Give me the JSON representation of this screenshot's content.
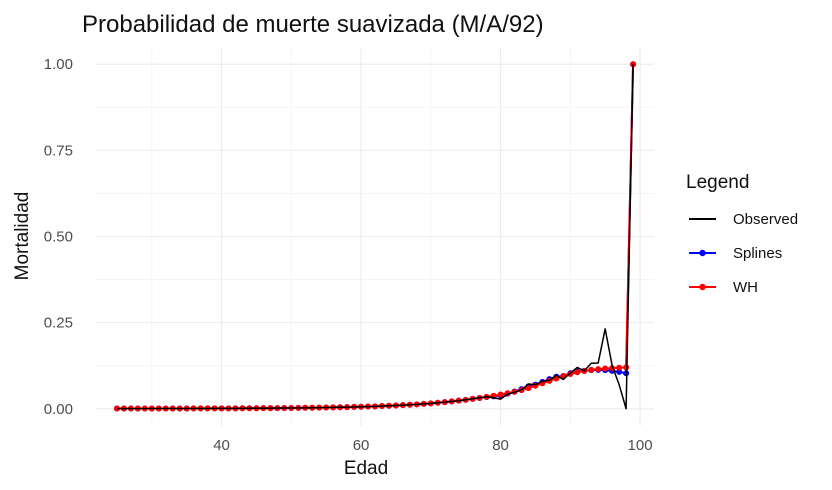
{
  "chart_data": {
    "type": "line",
    "title": "Probabilidad de muerte suavizada (M/A/92)",
    "xlabel": "Edad",
    "ylabel": "Mortalidad",
    "xlim": [
      22,
      102
    ],
    "ylim": [
      -0.05,
      1.05
    ],
    "x_ticks": [
      40,
      60,
      80,
      100
    ],
    "y_ticks": [
      0.0,
      0.25,
      0.5,
      0.75,
      1.0
    ],
    "y_tick_labels": [
      "0.00",
      "0.25",
      "0.50",
      "0.75",
      "1.00"
    ],
    "x_minor": [
      30,
      50,
      70,
      90
    ],
    "y_minor": [
      0.125,
      0.375,
      0.625,
      0.875
    ],
    "grid": true,
    "legend": {
      "title": "Legend",
      "position": "right",
      "entries": [
        {
          "label": "Observed",
          "color": "#000000",
          "marker": false
        },
        {
          "label": "Splines",
          "color": "#0000ff",
          "marker": true
        },
        {
          "label": "WH",
          "color": "#ff0000",
          "marker": true
        }
      ]
    },
    "x": [
      25,
      26,
      27,
      28,
      29,
      30,
      31,
      32,
      33,
      34,
      35,
      36,
      37,
      38,
      39,
      40,
      41,
      42,
      43,
      44,
      45,
      46,
      47,
      48,
      49,
      50,
      51,
      52,
      53,
      54,
      55,
      56,
      57,
      58,
      59,
      60,
      61,
      62,
      63,
      64,
      65,
      66,
      67,
      68,
      69,
      70,
      71,
      72,
      73,
      74,
      75,
      76,
      77,
      78,
      79,
      80,
      81,
      82,
      83,
      84,
      85,
      86,
      87,
      88,
      89,
      90,
      91,
      92,
      93,
      94,
      95,
      96,
      97,
      98,
      99
    ],
    "series": [
      {
        "name": "Observed",
        "color": "#000000",
        "marker": false,
        "values": [
          0.0006,
          0.0006,
          0.0006,
          0.0006,
          0.0006,
          0.0007,
          0.0007,
          0.0007,
          0.0007,
          0.0008,
          0.0008,
          0.0008,
          0.0009,
          0.0009,
          0.001,
          0.001,
          0.0011,
          0.0012,
          0.0013,
          0.0014,
          0.0015,
          0.0016,
          0.0018,
          0.0019,
          0.0021,
          0.0023,
          0.0025,
          0.0027,
          0.003,
          0.0033,
          0.0036,
          0.004,
          0.0044,
          0.0048,
          0.0053,
          0.0058,
          0.0064,
          0.007,
          0.0078,
          0.0086,
          0.0095,
          0.0105,
          0.0116,
          0.0128,
          0.0142,
          0.0157,
          0.0174,
          0.0193,
          0.0214,
          0.0237,
          0.0262,
          0.029,
          0.032,
          0.035,
          0.032,
          0.028,
          0.042,
          0.048,
          0.055,
          0.072,
          0.07,
          0.08,
          0.083,
          0.097,
          0.085,
          0.104,
          0.12,
          0.11,
          0.132,
          0.133,
          0.232,
          0.125,
          0.07,
          0.0,
          1.0
        ]
      },
      {
        "name": "Splines",
        "color": "#0000ff",
        "marker": true,
        "values": [
          0.0008,
          0.0008,
          0.0008,
          0.0008,
          0.0008,
          0.0008,
          0.0008,
          0.0009,
          0.0009,
          0.0009,
          0.0009,
          0.001,
          0.001,
          0.001,
          0.0011,
          0.0011,
          0.0012,
          0.0013,
          0.0014,
          0.0015,
          0.0016,
          0.0017,
          0.0019,
          0.002,
          0.0022,
          0.0024,
          0.0026,
          0.0028,
          0.0031,
          0.0034,
          0.0037,
          0.0041,
          0.0045,
          0.0049,
          0.0054,
          0.0059,
          0.0065,
          0.0071,
          0.0079,
          0.0087,
          0.0096,
          0.0106,
          0.0117,
          0.0129,
          0.0143,
          0.0158,
          0.0175,
          0.0194,
          0.0214,
          0.0236,
          0.026,
          0.0286,
          0.0314,
          0.034,
          0.036,
          0.039,
          0.044,
          0.05,
          0.057,
          0.065,
          0.07,
          0.078,
          0.086,
          0.093,
          0.095,
          0.103,
          0.108,
          0.11,
          0.112,
          0.113,
          0.112,
          0.11,
          0.107,
          0.103,
          1.0
        ]
      },
      {
        "name": "WH",
        "color": "#ff0000",
        "marker": true,
        "values": [
          0.0008,
          0.0008,
          0.0008,
          0.0008,
          0.0008,
          0.0008,
          0.0008,
          0.0009,
          0.0009,
          0.0009,
          0.0009,
          0.001,
          0.001,
          0.001,
          0.0011,
          0.0011,
          0.0012,
          0.0013,
          0.0014,
          0.0015,
          0.0016,
          0.0017,
          0.0019,
          0.002,
          0.0022,
          0.0024,
          0.0026,
          0.0028,
          0.0031,
          0.0034,
          0.0037,
          0.0041,
          0.0045,
          0.0049,
          0.0054,
          0.0059,
          0.0065,
          0.0071,
          0.0079,
          0.0087,
          0.0096,
          0.0106,
          0.0117,
          0.0129,
          0.0143,
          0.0158,
          0.0175,
          0.0194,
          0.0214,
          0.0236,
          0.026,
          0.0286,
          0.0314,
          0.0345,
          0.0378,
          0.0413,
          0.045,
          0.049,
          0.054,
          0.06,
          0.067,
          0.074,
          0.081,
          0.088,
          0.095,
          0.101,
          0.106,
          0.11,
          0.113,
          0.115,
          0.117,
          0.118,
          0.119,
          0.12,
          1.0
        ]
      }
    ]
  }
}
